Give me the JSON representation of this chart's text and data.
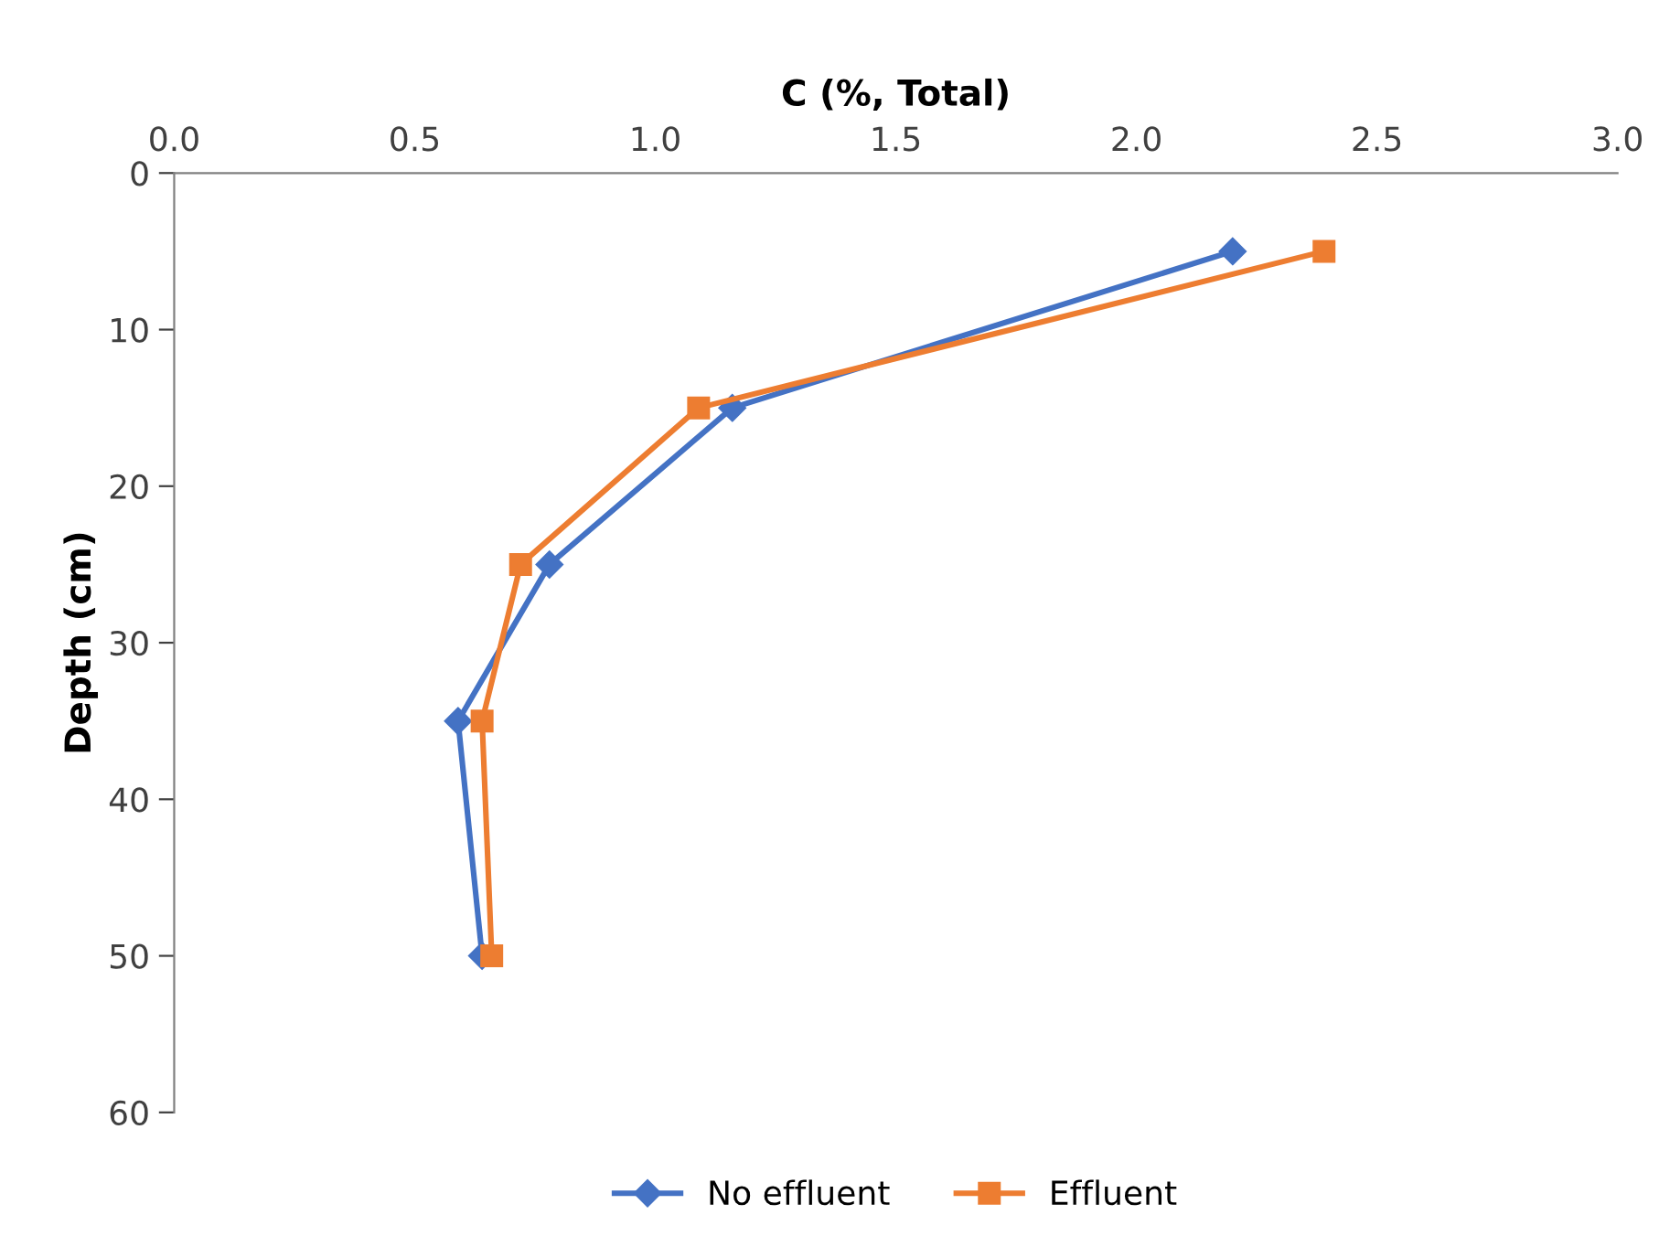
{
  "chart_data": {
    "type": "line",
    "xlabel": "C (%, Total)",
    "ylabel": "Depth (cm)",
    "series": [
      {
        "name": "No effluent",
        "color": "#4472c4",
        "marker": "diamond",
        "x": [
          2.2,
          1.16,
          0.78,
          0.59,
          0.64
        ],
        "values": [
          5,
          15,
          25,
          35,
          50
        ]
      },
      {
        "name": "Effluent",
        "color": "#ed7d31",
        "marker": "square",
        "x": [
          2.39,
          1.09,
          0.72,
          0.64,
          0.66
        ],
        "values": [
          5,
          15,
          25,
          35,
          50
        ]
      }
    ],
    "xlim": [
      0,
      3
    ],
    "xticks": [
      {
        "value": 0,
        "label": "0.0"
      },
      {
        "value": 0.5,
        "label": "0.5"
      },
      {
        "value": 1,
        "label": "1.0"
      },
      {
        "value": 1.5,
        "label": "1.5"
      },
      {
        "value": 2,
        "label": "2.0"
      },
      {
        "value": 2.5,
        "label": "2.5"
      },
      {
        "value": 3,
        "label": "3.0"
      }
    ],
    "ylim": [
      60,
      0
    ],
    "yticks": [
      0,
      10,
      20,
      30,
      40,
      50,
      60
    ],
    "grid": false,
    "legend": "bottom",
    "line_style": "solid"
  }
}
